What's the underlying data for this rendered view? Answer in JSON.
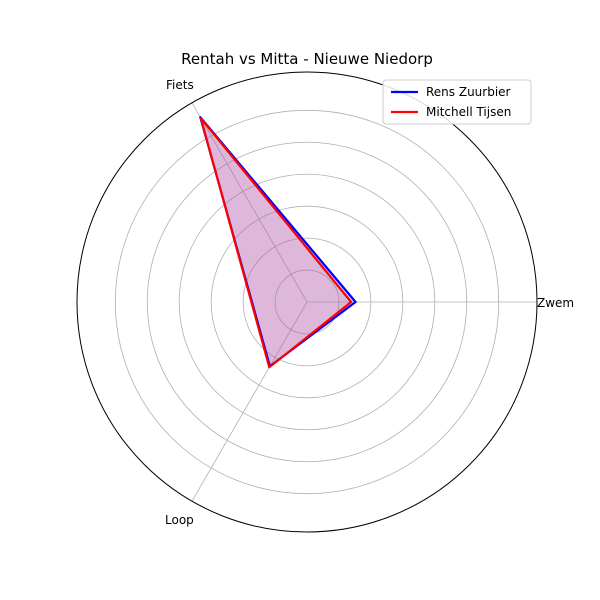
{
  "chart_data": {
    "type": "radar",
    "title": "Rentah vs Mitta - Nieuwe Niedorp",
    "categories": [
      "Zwem",
      "Fiets",
      "Loop"
    ],
    "rlim": [
      0,
      1.8
    ],
    "rgrid": [
      0.25,
      0.5,
      0.75,
      1.0,
      1.25,
      1.5
    ],
    "grid": true,
    "legend_position": "upper-right",
    "series": [
      {
        "name": "Rens Zuurbier",
        "values": [
          0.38,
          1.67,
          0.58
        ],
        "color": "#0000ff",
        "fill": "#4a4aff"
      },
      {
        "name": "Mitchell Tijsen",
        "values": [
          0.345,
          1.66,
          0.59
        ],
        "color": "#ff0000",
        "fill": "#ff6a6a"
      }
    ]
  }
}
